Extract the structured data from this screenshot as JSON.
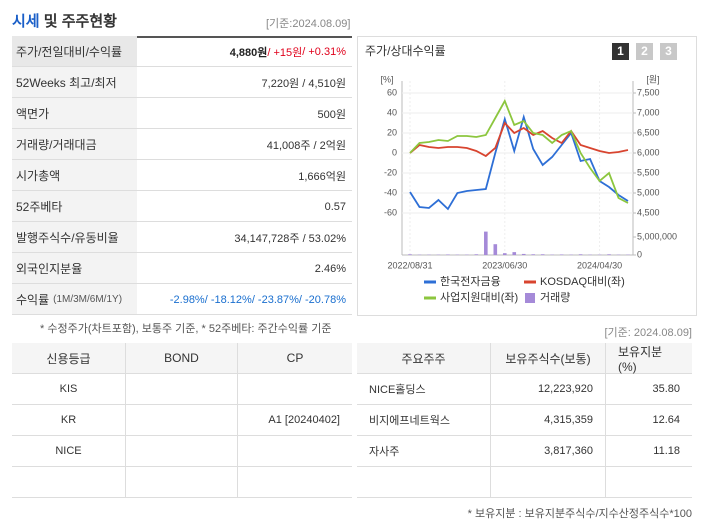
{
  "header": {
    "title": "시세",
    "title_rest": "및 주주현황",
    "date": "[기준:2024.08.09]"
  },
  "summary": {
    "rows": [
      {
        "label": "주가/전일대비/수익률",
        "value": [
          "4,880원",
          " / +15원",
          " / +0.31%"
        ]
      },
      {
        "label": "52Weeks 최고/최저",
        "value": "7,220원 / 4,510원"
      },
      {
        "label": "액면가",
        "value": "500원"
      },
      {
        "label": "거래량/거래대금",
        "value": "41,008주 / 2억원"
      },
      {
        "label": "시가총액",
        "value": "1,666억원"
      },
      {
        "label": "52주베타",
        "value": "0.57"
      },
      {
        "label": "발행주식수/유동비율",
        "value": "34,147,728주 / 53.02%"
      },
      {
        "label": "외국인지분율",
        "value": "2.46%"
      },
      {
        "label": [
          "수익률",
          "(1M/3M/6M/1Y)"
        ],
        "value": [
          "-2.98%",
          " / -18.12%",
          " / -23.87%",
          " / -20.78%"
        ]
      }
    ],
    "note": "* 수정주가(차트포함), 보통주 기준, * 52주베타: 주간수익률 기준"
  },
  "chart_panel": {
    "title": "주가/상대수익률",
    "tabs": [
      "1",
      "2",
      "3"
    ]
  },
  "chart_data": {
    "type": "line",
    "y_unit": "[%]",
    "y2_unit": "[원]",
    "categories": [
      "2022/08/31",
      null,
      null,
      null,
      null,
      null,
      null,
      null,
      null,
      null,
      "2023/06/30",
      null,
      null,
      null,
      null,
      null,
      null,
      null,
      null,
      null,
      "2024/04/30",
      null,
      null,
      null
    ],
    "ylim": [
      -60,
      60
    ],
    "yticks": [
      60,
      40,
      20,
      0,
      -20,
      -40,
      -60
    ],
    "y2lim": [
      4500,
      7500
    ],
    "y2ticks": [
      {
        "value": 7500,
        "label": "7,500"
      },
      {
        "value": 7000,
        "label": "7,000"
      },
      {
        "value": 6500,
        "label": "6,500"
      },
      {
        "value": 6000,
        "label": "6,000"
      },
      {
        "value": 5500,
        "label": "5,500"
      },
      {
        "value": 5000,
        "label": "5,000"
      },
      {
        "value": 4500,
        "label": "4,500"
      }
    ],
    "y3lim": [
      0,
      7000000
    ],
    "y3ticks": [
      {
        "value": 5000000,
        "label": "5,000,000"
      },
      0
    ],
    "grid": true,
    "series": [
      {
        "name": "한국전자금융",
        "color": "#2e6fd6",
        "axis": "y2",
        "values": [
          5025,
          4650,
          4625,
          4825,
          4600,
          5000,
          5050,
          5075,
          5100,
          6000,
          6850,
          6050,
          6900,
          6100,
          5700,
          5900,
          6200,
          6500,
          5800,
          5850,
          5300,
          5150,
          4950,
          4800
        ]
      },
      {
        "name": "KOSDAQ대비(좌)",
        "color": "#d8442f",
        "values": [
          0,
          8,
          6,
          5,
          6,
          6,
          5,
          2,
          -3,
          5,
          30,
          20,
          25,
          18,
          22,
          15,
          10,
          22,
          8,
          5,
          2,
          0,
          1,
          3
        ]
      },
      {
        "name": "사업지원대비(좌)",
        "color": "#8cc63e",
        "values": [
          0,
          10,
          11,
          13,
          12,
          17,
          17,
          16,
          18,
          35,
          52,
          28,
          32,
          20,
          18,
          10,
          18,
          22,
          0,
          -15,
          -28,
          -20,
          -45,
          -50
        ]
      },
      {
        "name": "거래량",
        "color": "#a58ad8",
        "axis": "y3",
        "type": "bar",
        "values": [
          200000,
          100000,
          100000,
          100000,
          150000,
          100000,
          100000,
          200000,
          6500000,
          3000000,
          500000,
          800000,
          300000,
          200000,
          200000,
          100000,
          150000,
          100000,
          200000,
          100000,
          100000,
          200000,
          100000,
          100000
        ]
      }
    ]
  },
  "credit": {
    "columns": [
      "신용등급",
      "BOND",
      "CP"
    ],
    "rows": [
      [
        "KIS",
        null,
        null
      ],
      [
        "KR",
        null,
        "A1 [20240402]"
      ],
      [
        "NICE",
        null,
        null
      ],
      [
        null,
        null,
        null
      ]
    ]
  },
  "holders": {
    "date": "[기준: 2024.08.09]",
    "columns": [
      "주요주주",
      "보유주식수(보통)",
      "보유지분(%)"
    ],
    "rows": [
      [
        "NICE홀딩스",
        "12,223,920",
        "35.80"
      ],
      [
        "비지에프네트웍스",
        "4,315,359",
        "12.64"
      ],
      [
        "자사주",
        "3,817,360",
        "11.18"
      ],
      [
        null,
        null,
        null
      ]
    ],
    "note": "* 보유지분 : 보유지분주식수/지수산정주식수*100"
  }
}
